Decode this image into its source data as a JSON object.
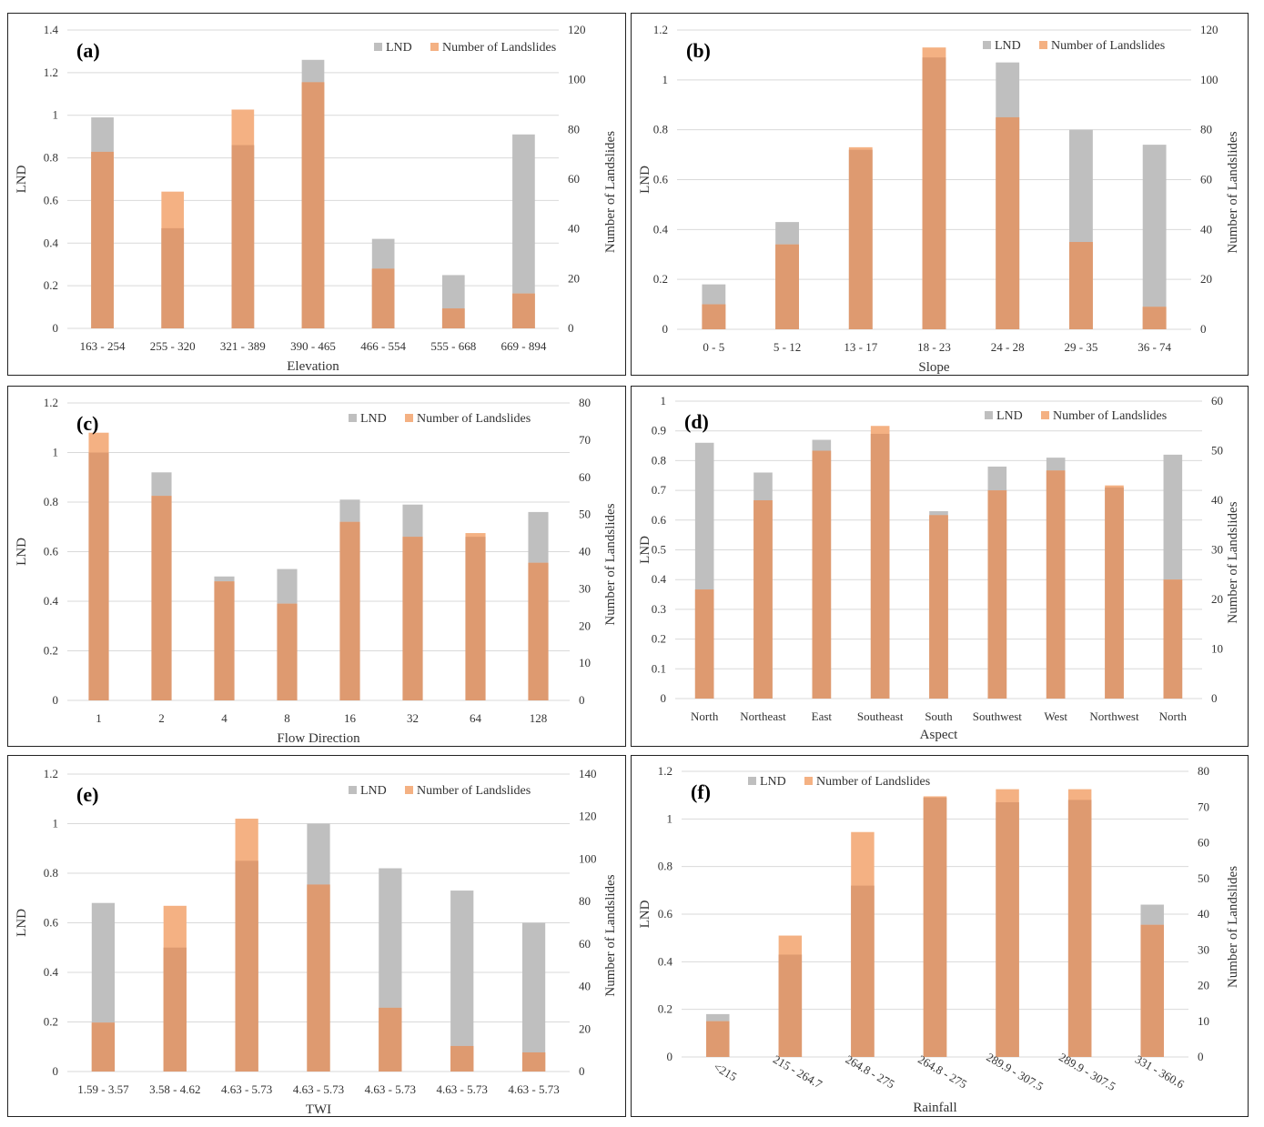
{
  "colors": {
    "lnd": "#BFBFBF",
    "landslides": "#F4B183",
    "overlap": "#DE9A70",
    "grid": "#D9D9D9"
  },
  "chart_data": [
    {
      "type": "bar",
      "panel_label": "(a)",
      "title": "",
      "xlabel": "Elevation",
      "ylabel": "LND",
      "y2label": "Number of Landslides",
      "categories": [
        "163 - 254",
        "255 - 320",
        "321 - 389",
        "390 - 465",
        "466 - 554",
        "555 - 668",
        "669 - 894"
      ],
      "ylim": [
        0,
        1.4
      ],
      "yticks": [
        "0",
        "0.2",
        "0.4",
        "0.6",
        "0.8",
        "1",
        "1.2",
        "1.4"
      ],
      "y2lim": [
        0,
        120
      ],
      "y2ticks": [
        "0",
        "20",
        "40",
        "60",
        "80",
        "100",
        "120"
      ],
      "legend": [
        "LND",
        "Number of Landslides"
      ],
      "legend_position": "top-right",
      "series": [
        {
          "name": "LND",
          "axis": "left",
          "values": [
            0.99,
            0.47,
            0.86,
            1.26,
            0.42,
            0.25,
            0.91
          ]
        },
        {
          "name": "Number of Landslides",
          "axis": "right",
          "values": [
            71,
            55,
            88,
            99,
            24,
            8,
            14
          ]
        }
      ]
    },
    {
      "type": "bar",
      "panel_label": "(b)",
      "title": "",
      "xlabel": "Slope",
      "ylabel": "LND",
      "y2label": "Number of Landslides",
      "categories": [
        "0 - 5",
        "5 - 12",
        "13 - 17",
        "18 - 23",
        "24 - 28",
        "29 - 35",
        "36 - 74"
      ],
      "ylim": [
        0,
        1.2
      ],
      "yticks": [
        "0",
        "0.2",
        "0.4",
        "0.6",
        "0.8",
        "1",
        "1.2"
      ],
      "y2lim": [
        0,
        120
      ],
      "y2ticks": [
        "0",
        "20",
        "40",
        "60",
        "80",
        "100",
        "120"
      ],
      "legend": [
        "LND",
        "Number of Landslides"
      ],
      "legend_position": "top-right",
      "series": [
        {
          "name": "LND",
          "axis": "left",
          "values": [
            0.18,
            0.43,
            0.72,
            1.09,
            1.07,
            0.8,
            0.74
          ]
        },
        {
          "name": "Number of Landslides",
          "axis": "right",
          "values": [
            10,
            34,
            73,
            113,
            85,
            35,
            9
          ]
        }
      ]
    },
    {
      "type": "bar",
      "panel_label": "(c)",
      "title": "",
      "xlabel": "Flow Direction",
      "ylabel": "LND",
      "y2label": "Number of Landslides",
      "categories": [
        "1",
        "2",
        "4",
        "8",
        "16",
        "32",
        "64",
        "128"
      ],
      "ylim": [
        0,
        1.2
      ],
      "yticks": [
        "0",
        "0.2",
        "0.4",
        "0.6",
        "0.8",
        "1",
        "1.2"
      ],
      "y2lim": [
        0,
        80
      ],
      "y2ticks": [
        "0",
        "10",
        "20",
        "30",
        "40",
        "50",
        "60",
        "70",
        "80"
      ],
      "legend": [
        "LND",
        "Number of Landslides"
      ],
      "legend_position": "top-right",
      "series": [
        {
          "name": "LND",
          "axis": "left",
          "values": [
            1.0,
            0.92,
            0.5,
            0.53,
            0.81,
            0.79,
            0.66,
            0.76
          ]
        },
        {
          "name": "Number of Landslides",
          "axis": "right",
          "values": [
            72,
            55,
            32,
            26,
            48,
            44,
            45,
            37
          ]
        }
      ]
    },
    {
      "type": "bar",
      "panel_label": "(d)",
      "title": "",
      "xlabel": "Aspect",
      "ylabel": "LND",
      "y2label": "Number of Landslides",
      "categories": [
        "North",
        "Northeast",
        "East",
        "Southeast",
        "South",
        "Southwest",
        "West",
        "Northwest",
        "North"
      ],
      "ylim": [
        0,
        1.0
      ],
      "yticks": [
        "0",
        "0.1",
        "0.2",
        "0.3",
        "0.4",
        "0.5",
        "0.6",
        "0.7",
        "0.8",
        "0.9",
        "1"
      ],
      "y2lim": [
        0,
        60
      ],
      "y2ticks": [
        "0",
        "10",
        "20",
        "30",
        "40",
        "50",
        "60"
      ],
      "legend": [
        "LND",
        "Number of Landslides"
      ],
      "legend_position": "top-right",
      "series": [
        {
          "name": "LND",
          "axis": "left",
          "values": [
            0.86,
            0.76,
            0.87,
            0.89,
            0.63,
            0.78,
            0.81,
            0.71,
            0.82
          ]
        },
        {
          "name": "Number of Landslides",
          "axis": "right",
          "values": [
            22,
            40,
            50,
            55,
            37,
            42,
            46,
            43,
            24
          ]
        }
      ]
    },
    {
      "type": "bar",
      "panel_label": "(e)",
      "title": "",
      "xlabel": "TWI",
      "ylabel": "LND",
      "y2label": "Number of Landslides",
      "categories": [
        "1.59 - 3.57",
        "3.58 - 4.62",
        "4.63 - 5.73",
        "4.63 - 5.73",
        "4.63 - 5.73",
        "4.63 - 5.73",
        "4.63 - 5.73"
      ],
      "ylim": [
        0,
        1.2
      ],
      "yticks": [
        "0",
        "0.2",
        "0.4",
        "0.6",
        "0.8",
        "1",
        "1.2"
      ],
      "y2lim": [
        0,
        140
      ],
      "y2ticks": [
        "0",
        "20",
        "40",
        "60",
        "80",
        "100",
        "120",
        "140"
      ],
      "legend": [
        "LND",
        "Number of Landslides"
      ],
      "legend_position": "top-right",
      "series": [
        {
          "name": "LND",
          "axis": "left",
          "values": [
            0.68,
            0.5,
            0.85,
            1.0,
            0.82,
            0.73,
            0.6
          ]
        },
        {
          "name": "Number of Landslides",
          "axis": "right",
          "values": [
            23,
            78,
            119,
            88,
            30,
            12,
            9
          ]
        }
      ]
    },
    {
      "type": "bar",
      "panel_label": "(f)",
      "title": "",
      "xlabel": "Rainfall",
      "ylabel": "LND",
      "y2label": "Number of Landslides",
      "categories": [
        "<215",
        "215 - 264.7",
        "264.8 - 275",
        "264.8 - 275",
        "289.9 - 307.5",
        "289.9 - 307.5",
        "331 - 360.6"
      ],
      "ylim": [
        0,
        1.2
      ],
      "yticks": [
        "0",
        "0.2",
        "0.4",
        "0.6",
        "0.8",
        "1",
        "1.2"
      ],
      "y2lim": [
        0,
        80
      ],
      "y2ticks": [
        "0",
        "10",
        "20",
        "30",
        "40",
        "50",
        "60",
        "70",
        "80"
      ],
      "legend": [
        "LND",
        "Number of Landslides"
      ],
      "legend_position": "top-left",
      "series": [
        {
          "name": "LND",
          "axis": "left",
          "values": [
            0.18,
            0.43,
            0.72,
            1.09,
            1.07,
            1.08,
            0.64
          ]
        },
        {
          "name": "Number of Landslides",
          "axis": "right",
          "values": [
            10,
            34,
            63,
            73,
            75,
            75,
            37
          ]
        }
      ]
    }
  ]
}
